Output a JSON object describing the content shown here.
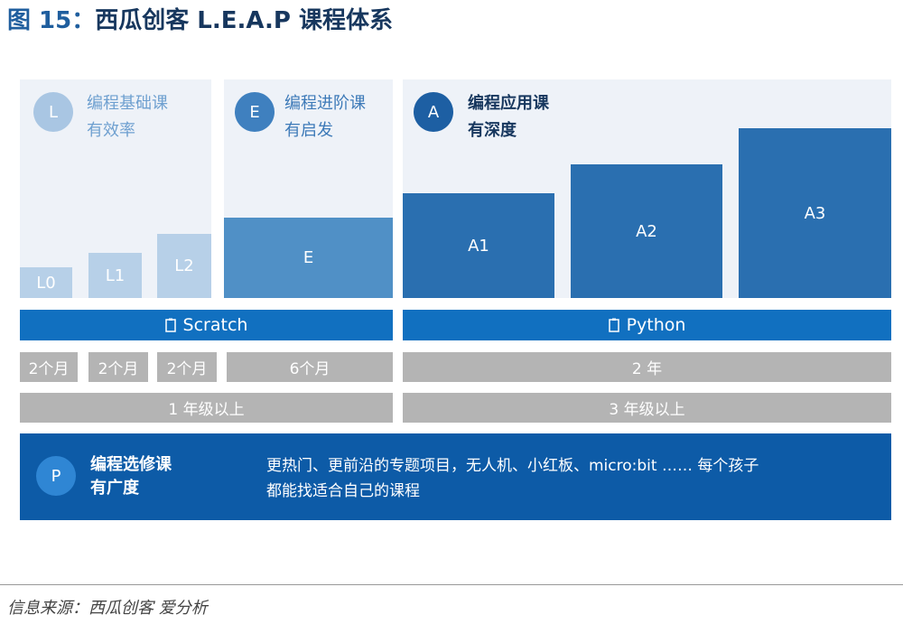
{
  "title": {
    "prefix": "图 15：",
    "number": "",
    "text": "西瓜创客 L.E.A.P 课程体系"
  },
  "panels": {
    "L": {
      "letter": "L",
      "line1": "编程基础课",
      "line2": "有效率"
    },
    "E": {
      "letter": "E",
      "line1": "编程进阶课",
      "line2": "有启发"
    },
    "A": {
      "letter": "A",
      "line1": "编程应用课",
      "line2": "有深度"
    }
  },
  "levels": [
    "L0",
    "L1",
    "L2",
    "E",
    "A1",
    "A2",
    "A3"
  ],
  "platform_bars": {
    "left": "Scratch",
    "right": "Python"
  },
  "durations": {
    "left": [
      "2个月",
      "2个月",
      "2个月",
      "6个月"
    ],
    "right": "2 年"
  },
  "grades": {
    "left": "1 年级以上",
    "right": "3 年级以上"
  },
  "elective": {
    "letter": "P",
    "line1": "编程选修课",
    "line2": "有广度",
    "desc_line1": "更热门、更前沿的专题项目，无人机、小红板、micro:bit …… 每个孩子",
    "desc_line2": "都能找适合自己的课程"
  },
  "source": "信息来源：西瓜创客 爱分析",
  "icons": {
    "bar_icon": "file-icon"
  },
  "colors": {
    "light_box": "#b7d0e8",
    "mid_box": "#5090c6",
    "dark_box": "#2a6fb0",
    "bar": "#1170c0",
    "gray": "#b4b4b4",
    "bottom": "#0d5ba7"
  }
}
